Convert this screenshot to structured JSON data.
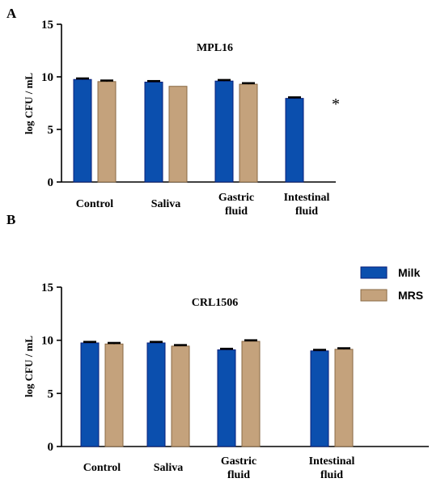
{
  "colors": {
    "milk": "#0b4fae",
    "milk_edge": "#0a1f7a",
    "mrs": "#c4a27c",
    "mrs_edge": "#8a6a45",
    "axis": "#000000",
    "errorbar": "#000000"
  },
  "legend": {
    "placement": "right",
    "items": [
      {
        "label": "Milk",
        "color": "#0b4fae"
      },
      {
        "label": "MRS",
        "color": "#c4a27c"
      }
    ]
  },
  "chart_data": [
    {
      "panel": "A",
      "type": "bar",
      "title": "MPL16",
      "ylabel": "log CFU / mL",
      "ylim": [
        0,
        15
      ],
      "yticks": [
        0,
        5,
        10,
        15
      ],
      "grid": false,
      "categories": [
        [
          "Control"
        ],
        [
          "Saliva"
        ],
        [
          "Gastric",
          "fluid"
        ],
        [
          "Intestinal",
          "fluid"
        ]
      ],
      "series": [
        {
          "name": "Milk",
          "values": [
            9.75,
            9.5,
            9.6,
            7.95
          ],
          "errors": [
            0.1,
            0.1,
            0.1,
            0.1
          ]
        },
        {
          "name": "MRS",
          "values": [
            9.55,
            9.1,
            9.3,
            null
          ],
          "errors": [
            0.1,
            0.0,
            0.1,
            null
          ]
        }
      ],
      "annotations": [
        {
          "category_index": 3,
          "text": "*"
        }
      ]
    },
    {
      "panel": "B",
      "type": "bar",
      "title": "CRL1506",
      "ylabel": "log CFU / mL",
      "ylim": [
        0,
        15
      ],
      "yticks": [
        0,
        5,
        10,
        15
      ],
      "grid": false,
      "categories": [
        [
          "Control"
        ],
        [
          "Saliva"
        ],
        [
          "Gastric",
          "fluid"
        ],
        [
          "Intestinal",
          "fluid"
        ]
      ],
      "series": [
        {
          "name": "Milk",
          "values": [
            9.75,
            9.75,
            9.1,
            9.0
          ],
          "errors": [
            0.1,
            0.1,
            0.1,
            0.1
          ]
        },
        {
          "name": "MRS",
          "values": [
            9.65,
            9.45,
            9.9,
            9.15
          ],
          "errors": [
            0.1,
            0.1,
            0.1,
            0.1
          ]
        }
      ],
      "annotations": []
    }
  ]
}
